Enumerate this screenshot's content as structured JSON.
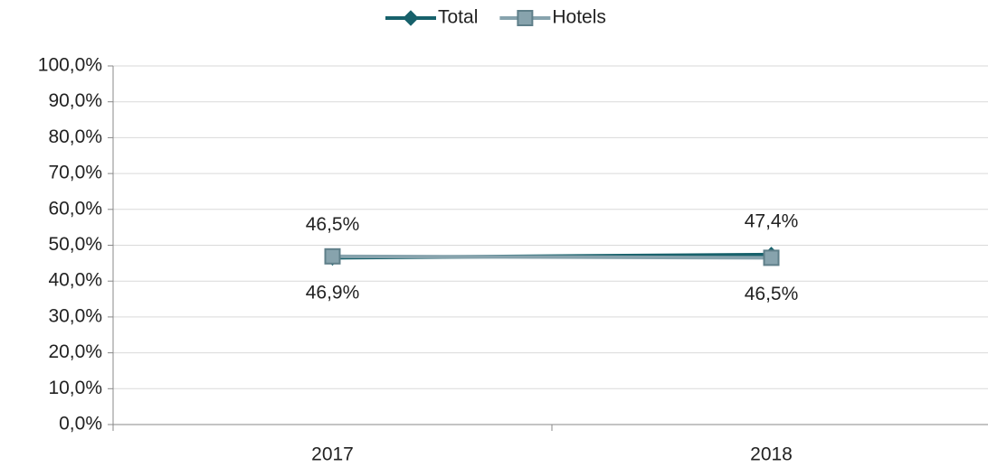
{
  "chart_data": {
    "type": "line",
    "categories": [
      "2017",
      "2018"
    ],
    "series": [
      {
        "name": "Total",
        "color": "#17616b",
        "marker": "diamond",
        "values": [
          46.5,
          47.4
        ],
        "value_labels": [
          "46,5%",
          "47,4%"
        ]
      },
      {
        "name": "Hotels",
        "color": "#87a3ad",
        "marker": "square",
        "values": [
          46.9,
          46.5
        ],
        "value_labels": [
          "46,9%",
          "46,5%"
        ]
      }
    ],
    "ylim": [
      0,
      100
    ],
    "yticks": [
      {
        "value": 0,
        "label": "0,0%"
      },
      {
        "value": 10,
        "label": "10,0%"
      },
      {
        "value": 20,
        "label": "20,0%"
      },
      {
        "value": 30,
        "label": "30,0%"
      },
      {
        "value": 40,
        "label": "40,0%"
      },
      {
        "value": 50,
        "label": "50,0%"
      },
      {
        "value": 60,
        "label": "60,0%"
      },
      {
        "value": 70,
        "label": "70,0%"
      },
      {
        "value": 80,
        "label": "80,0%"
      },
      {
        "value": 90,
        "label": "90,0%"
      },
      {
        "value": 100,
        "label": "100,0%"
      }
    ],
    "grid": true,
    "legend": "top"
  }
}
